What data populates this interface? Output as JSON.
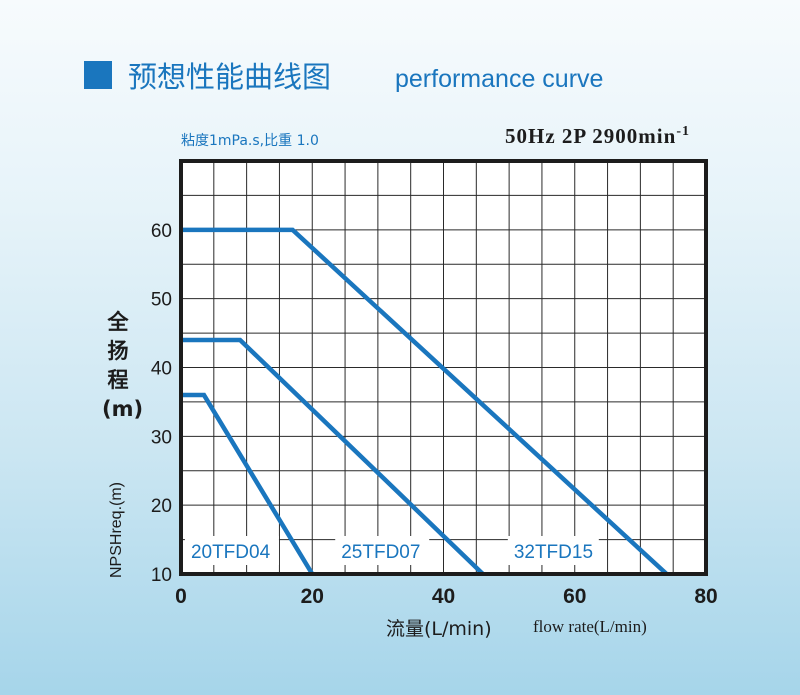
{
  "header": {
    "title_cn": "预想性能曲线图",
    "title_en": "performance curve",
    "accent_color": "#1a76be"
  },
  "chart_data": {
    "type": "line",
    "subtitle_left": "粘度1mPa.s,比重 1.0",
    "subtitle_right": "50Hz  2P  2900min",
    "subtitle_right_sup": "-1",
    "ylabel_chars": [
      "全",
      "扬",
      "程",
      "(m)"
    ],
    "ylabel2": "NPSHreq.(m)",
    "xlabel_cn": "流量(L/min)",
    "xlabel_en": "flow rate(L/min)",
    "xlim": [
      0,
      80
    ],
    "ylim": [
      10,
      70
    ],
    "x_ticks": [
      0,
      20,
      40,
      60,
      80
    ],
    "y_ticks": [
      10,
      20,
      30,
      40,
      50,
      60
    ],
    "grid": true,
    "series_color": "#1a76be",
    "series": [
      {
        "name": "20TFD04",
        "x": [
          0,
          3.5,
          20
        ],
        "y": [
          36,
          36,
          10
        ]
      },
      {
        "name": "25TFD07",
        "x": [
          0,
          9,
          46
        ],
        "y": [
          44,
          44,
          10
        ]
      },
      {
        "name": "32TFD15",
        "x": [
          0,
          17,
          74
        ],
        "y": [
          60,
          60,
          10
        ]
      }
    ]
  }
}
